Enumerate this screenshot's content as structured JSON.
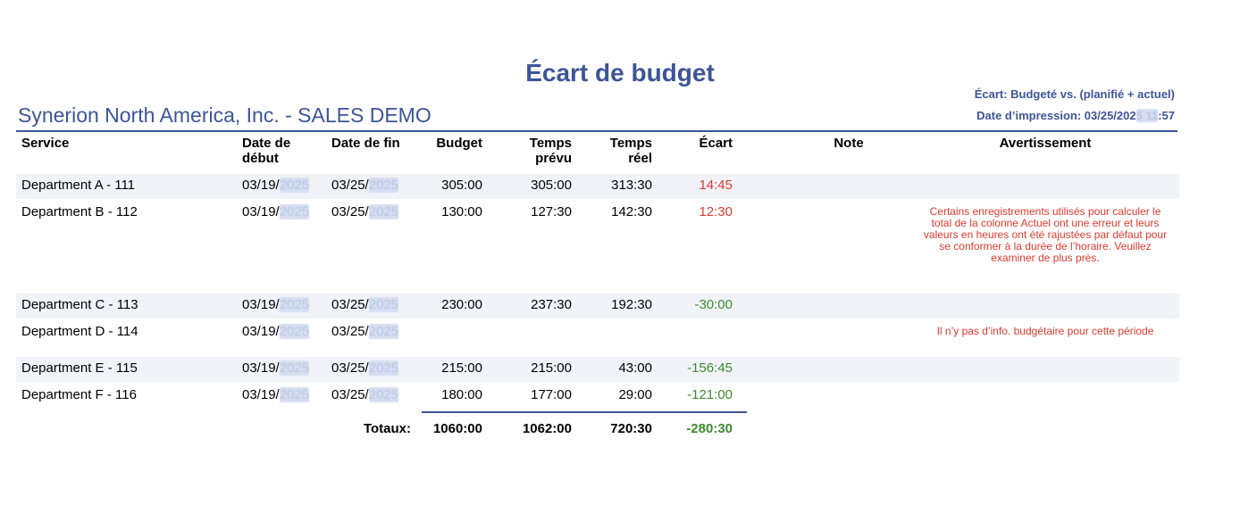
{
  "header": {
    "title": "Écart de budget",
    "company": "Synerion North America, Inc. - SALES DEMO",
    "variance_basis": "Écart: Budgeté vs. (planifié + actuel)",
    "print_label": "Date d’impression: 03/25/202",
    "print_hidden": "5 11",
    "print_suffix": ":57"
  },
  "columns": {
    "service": "Service",
    "start_a": "Date de",
    "start_b": "début",
    "end": "Date de fin",
    "budget": "Budget",
    "tprev_a": "Temps",
    "tprev_b": "prévu",
    "treel_a": "Temps",
    "treel_b": "réel",
    "ecart": "Écart",
    "note": "Note",
    "warning": "Avertissement"
  },
  "date_prefix_start": "03/19/",
  "date_prefix_end": "03/25/",
  "year_hidden": "2025",
  "rows": [
    {
      "service": "Department A - 111",
      "budget": "305:00",
      "tprev": "305:00",
      "treel": "313:30",
      "ecart": "14:45",
      "warning": ""
    },
    {
      "service": "Department B - 112",
      "budget": "130:00",
      "tprev": "127:30",
      "treel": "142:30",
      "ecart": "12:30",
      "warning": "Certains enregistrements utilisés pour calculer le total de la colonne Actuel ont une erreur et leurs valeurs en heures ont été rajustées par défaut pour se conformer à la durée de l’horaire. Veuillez examiner de plus près."
    },
    {
      "service": "Department C - 113",
      "budget": "230:00",
      "tprev": "237:30",
      "treel": "192:30",
      "ecart": "-30:00",
      "warning": ""
    },
    {
      "service": "Department D - 114",
      "budget": "",
      "tprev": "",
      "treel": "",
      "ecart": "",
      "warning": "Il n’y pas d’info. budgétaire pour cette période"
    },
    {
      "service": "Department E - 115",
      "budget": "215:00",
      "tprev": "215:00",
      "treel": "43:00",
      "ecart": "-156:45",
      "warning": ""
    },
    {
      "service": "Department F - 116",
      "budget": "180:00",
      "tprev": "177:00",
      "treel": "29:00",
      "ecart": "-121:00",
      "warning": ""
    }
  ],
  "totals": {
    "label": "Totaux:",
    "budget": "1060:00",
    "tprev": "1062:00",
    "treel": "720:30",
    "ecart": "-280:30"
  }
}
